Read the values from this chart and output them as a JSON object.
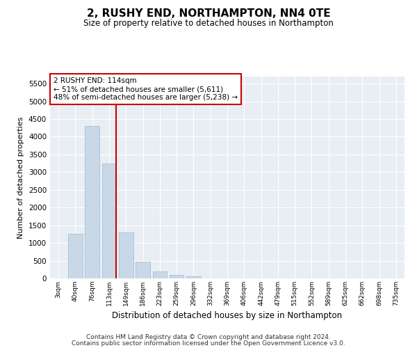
{
  "title": "2, RUSHY END, NORTHAMPTON, NN4 0TE",
  "subtitle": "Size of property relative to detached houses in Northampton",
  "xlabel": "Distribution of detached houses by size in Northampton",
  "ylabel": "Number of detached properties",
  "footer_line1": "Contains HM Land Registry data © Crown copyright and database right 2024.",
  "footer_line2": "Contains public sector information licensed under the Open Government Licence v3.0.",
  "annotation_line1": "2 RUSHY END: 114sqm",
  "annotation_line2": "← 51% of detached houses are smaller (5,611)",
  "annotation_line3": "48% of semi-detached houses are larger (5,238) →",
  "bar_color": "#c8d8e8",
  "bar_edge_color": "#a0b8cc",
  "marker_line_color": "#cc0000",
  "annotation_box_color": "#ffffff",
  "annotation_box_edge": "#cc0000",
  "background_color": "#e8eef4",
  "categories": [
    "3sqm",
    "40sqm",
    "76sqm",
    "113sqm",
    "149sqm",
    "186sqm",
    "223sqm",
    "259sqm",
    "296sqm",
    "332sqm",
    "369sqm",
    "406sqm",
    "442sqm",
    "479sqm",
    "515sqm",
    "552sqm",
    "589sqm",
    "625sqm",
    "662sqm",
    "698sqm",
    "735sqm"
  ],
  "values": [
    0,
    1250,
    4300,
    3250,
    1300,
    480,
    200,
    100,
    60,
    0,
    0,
    0,
    0,
    0,
    0,
    0,
    0,
    0,
    0,
    0,
    0
  ],
  "marker_index": 3,
  "ylim": [
    0,
    5700
  ],
  "yticks": [
    0,
    500,
    1000,
    1500,
    2000,
    2500,
    3000,
    3500,
    4000,
    4500,
    5000,
    5500
  ]
}
